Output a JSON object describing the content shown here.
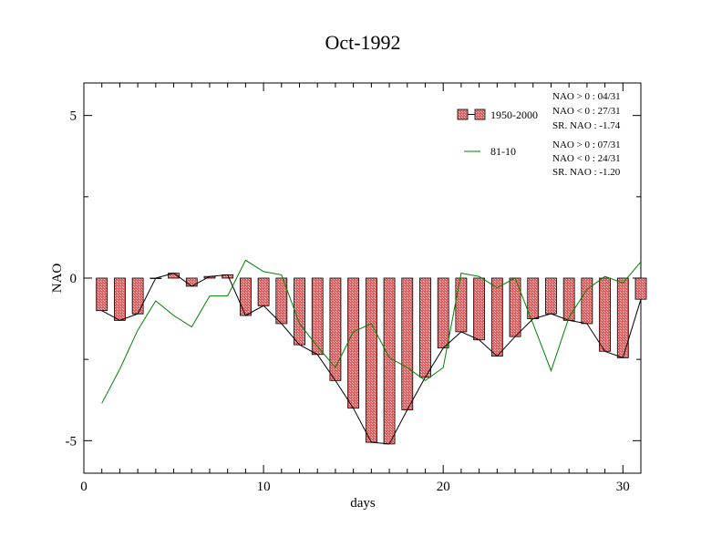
{
  "chart_data": {
    "type": "bar",
    "title": "Oct-1992",
    "xlabel": "days",
    "ylabel": "NAO",
    "xlim": [
      0,
      31
    ],
    "ylim": [
      -6,
      6
    ],
    "x_ticks": [
      0,
      10,
      20,
      30
    ],
    "y_ticks": [
      -5,
      0,
      5
    ],
    "x_tick_labels": [
      "0",
      "10",
      "20",
      "30"
    ],
    "y_tick_labels": [
      "-5",
      "0",
      "5"
    ],
    "x": [
      1,
      2,
      3,
      4,
      5,
      6,
      7,
      8,
      9,
      10,
      11,
      12,
      13,
      14,
      15,
      16,
      17,
      18,
      19,
      20,
      21,
      22,
      23,
      24,
      25,
      26,
      27,
      28,
      29,
      30,
      31
    ],
    "series": [
      {
        "name": "1950-2000",
        "kind": "bar",
        "color": "#e05c5c",
        "values": [
          -1.0,
          -1.3,
          -1.1,
          0.0,
          0.15,
          -0.25,
          0.05,
          0.1,
          -1.15,
          -0.85,
          -1.4,
          -2.05,
          -2.35,
          -3.15,
          -4.0,
          -5.05,
          -5.1,
          -4.05,
          -3.05,
          -2.15,
          -1.65,
          -1.9,
          -2.4,
          -1.8,
          -1.25,
          -1.1,
          -1.3,
          -1.4,
          -2.25,
          -2.45,
          -0.65
        ]
      },
      {
        "name": "81-10",
        "kind": "line",
        "color": "#008000",
        "values": [
          -3.85,
          -2.8,
          -1.6,
          -0.7,
          -1.15,
          -1.5,
          -0.55,
          -0.55,
          0.55,
          0.2,
          0.1,
          -1.4,
          -2.1,
          -2.75,
          -1.65,
          -1.4,
          -2.45,
          -2.75,
          -3.15,
          -2.75,
          0.15,
          0.05,
          -0.3,
          0.0,
          -1.4,
          -2.85,
          -1.2,
          -0.35,
          0.05,
          -0.15,
          0.5
        ]
      }
    ],
    "legend": {
      "position": "top-right",
      "entries": [
        {
          "label": "1950-2000",
          "stats": [
            "NAO > 0 : 04/31",
            "NAO < 0 : 27/31",
            "SR. NAO : -1.74"
          ]
        },
        {
          "label": "81-10",
          "stats": [
            "NAO > 0 : 07/31",
            "NAO < 0 : 24/31",
            "SR. NAO : -1.20"
          ]
        }
      ]
    },
    "grid": false
  }
}
